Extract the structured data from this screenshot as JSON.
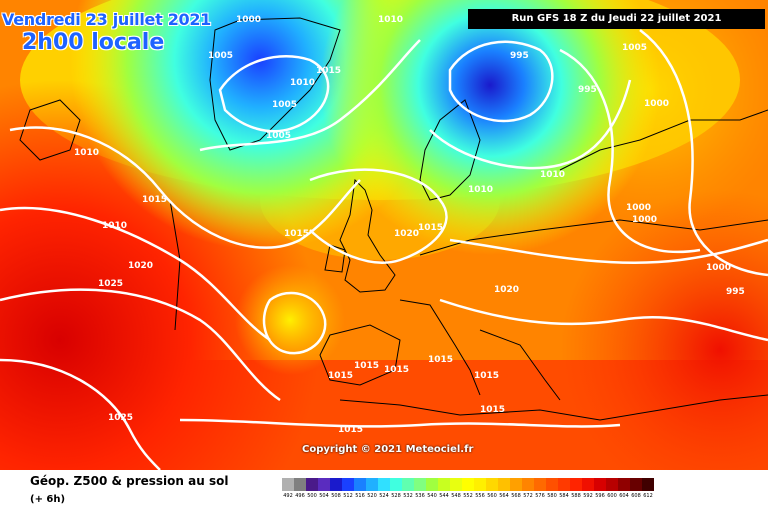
{
  "header": {
    "date": "Vendredi 23 juillet 2021",
    "time": "2h00 locale",
    "run": "Run GFS 18 Z du Jeudi 22 juillet 2021"
  },
  "copyright": "Copyright © 2021 Meteociel.fr",
  "legend": {
    "title": "Géop. Z500 & pression au sol",
    "subtitle": "(+ 6h)",
    "scale": [
      "492",
      "496",
      "500",
      "504",
      "508",
      "512",
      "516",
      "520",
      "524",
      "528",
      "532",
      "536",
      "540",
      "544",
      "548",
      "552",
      "556",
      "560",
      "564",
      "568",
      "572",
      "576",
      "580",
      "584",
      "588",
      "592",
      "596",
      "600",
      "604",
      "608",
      "612"
    ],
    "colors": [
      "#b0b0b0",
      "#808080",
      "#4a1a8a",
      "#5a2cbf",
      "#1a1acc",
      "#1a40ff",
      "#1a80ff",
      "#20b0ff",
      "#30e0ff",
      "#40ffe0",
      "#60ffb0",
      "#80ff80",
      "#a0ff40",
      "#c8ff20",
      "#e8ff10",
      "#ffff00",
      "#fff000",
      "#ffd800",
      "#ffc000",
      "#ffa000",
      "#ff8400",
      "#ff6a00",
      "#ff5000",
      "#ff3a00",
      "#ff2400",
      "#f01000",
      "#d80000",
      "#b80000",
      "#900000",
      "#680000",
      "#400000"
    ]
  },
  "isobars": [
    {
      "label": "1000"
    },
    {
      "label": "1010"
    },
    {
      "label": "1005"
    },
    {
      "label": "1015"
    },
    {
      "label": "1010"
    },
    {
      "label": "1005"
    },
    {
      "label": "1005"
    },
    {
      "label": "1010"
    },
    {
      "label": "995"
    },
    {
      "label": "995"
    },
    {
      "label": "1000"
    },
    {
      "label": "1005"
    },
    {
      "label": "1010"
    },
    {
      "label": "1015"
    },
    {
      "label": "1015"
    },
    {
      "label": "1010"
    },
    {
      "label": "1020"
    },
    {
      "label": "1015"
    },
    {
      "label": "1010"
    },
    {
      "label": "1000"
    },
    {
      "label": "1000"
    },
    {
      "label": "1000"
    },
    {
      "label": "995"
    },
    {
      "label": "1020"
    },
    {
      "label": "1025"
    },
    {
      "label": "1020"
    },
    {
      "label": "1015"
    },
    {
      "label": "1015"
    },
    {
      "label": "1015"
    },
    {
      "label": "1015"
    },
    {
      "label": "1015"
    },
    {
      "label": "1015"
    },
    {
      "label": "1025"
    },
    {
      "label": "1015"
    }
  ]
}
